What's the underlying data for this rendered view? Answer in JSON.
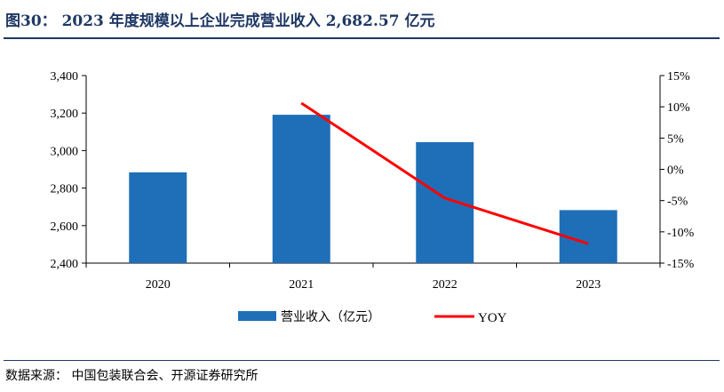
{
  "title": "图30：  2023  年度规模以上企业完成营业收入  2,682.57  亿元",
  "source": "数据来源：  中国包装联合会、开源证券研究所",
  "colors": {
    "bar": "#1e6fb8",
    "line": "#ff0000",
    "title": "#1f3864"
  },
  "chart_data": {
    "type": "bar",
    "categories": [
      "2020",
      "2021",
      "2022",
      "2023"
    ],
    "series": [
      {
        "name": "营业收入（亿元）",
        "type": "bar",
        "axis": "left",
        "values": [
          2884,
          3191,
          3045,
          2682.57
        ]
      },
      {
        "name": "YOY",
        "type": "line",
        "axis": "right",
        "values": [
          null,
          10.6,
          -4.6,
          -11.9
        ]
      }
    ],
    "y_left": {
      "min": 2400,
      "max": 3400,
      "ticks": [
        "2,400",
        "2,600",
        "2,800",
        "3,000",
        "3,200",
        "3,400"
      ],
      "tick_values": [
        2400,
        2600,
        2800,
        3000,
        3200,
        3400
      ]
    },
    "y_right": {
      "min": -15,
      "max": 15,
      "ticks": [
        "-15%",
        "-10%",
        "-5%",
        "0%",
        "5%",
        "10%",
        "15%"
      ],
      "tick_values": [
        -15,
        -10,
        -5,
        0,
        5,
        10,
        15
      ]
    },
    "grid": false,
    "legend_position": "bottom-center"
  }
}
